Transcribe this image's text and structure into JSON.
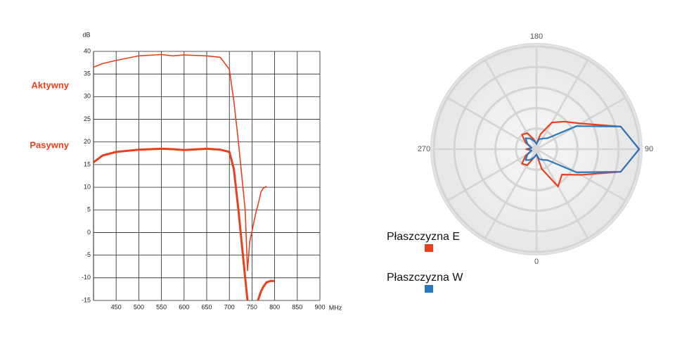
{
  "chart_data": [
    {
      "type": "line",
      "y_label": "dB",
      "x_label": "MHz",
      "x": [
        400,
        420,
        450,
        500,
        550,
        575,
        600,
        650,
        680,
        700,
        710,
        720,
        730,
        735,
        740,
        745,
        760,
        763,
        770,
        775,
        782,
        791,
        800
      ],
      "series": [
        {
          "name": "Aktywny",
          "color": "#e8401c",
          "values": [
            36.5,
            37.3,
            38,
            39,
            39.3,
            39,
            39.2,
            39,
            38.7,
            36,
            29,
            20,
            10,
            5,
            -8.5,
            -2,
            5,
            6,
            9,
            9.8,
            10.2,
            null,
            null
          ]
        },
        {
          "name": "Pasywny",
          "color": "#e8401c",
          "values": [
            15.5,
            17,
            17.8,
            18.3,
            18.5,
            18.4,
            18.2,
            18.5,
            18.3,
            17.8,
            14,
            5,
            -5,
            -10,
            -15,
            null,
            null,
            -15,
            -13,
            -12,
            -11,
            -10.7,
            -10.7
          ]
        }
      ],
      "xlim": [
        400,
        900
      ],
      "xticks": [
        450,
        500,
        550,
        600,
        650,
        700,
        750,
        800,
        850,
        900
      ],
      "ylim": [
        -15,
        40
      ],
      "yticks": [
        -15,
        -10,
        -5,
        0,
        5,
        10,
        15,
        20,
        25,
        30,
        35,
        40
      ],
      "grid": true
    },
    {
      "type": "polar",
      "theta": [
        0,
        15,
        30,
        45,
        60,
        75,
        90,
        105,
        120,
        135,
        150,
        165,
        180,
        195,
        210,
        225,
        240,
        255,
        270,
        285,
        300,
        315,
        330,
        345
      ],
      "series": [
        {
          "name": "Płaszczyzna E",
          "color": "#e8401c",
          "values": [
            0.05,
            0.2,
            0.42,
            0.35,
            0.5,
            0.85,
            1.0,
            0.85,
            0.5,
            0.38,
            0.3,
            0.15,
            0.05,
            0.1,
            0.18,
            0.2,
            0.12,
            0.05,
            0.1,
            0.05,
            0.12,
            0.2,
            0.18,
            0.08
          ]
        },
        {
          "name": "Płaszczyzna W",
          "color": "#2a78c0",
          "values": [
            0.05,
            0.1,
            0.12,
            0.15,
            0.45,
            0.85,
            1.0,
            0.85,
            0.45,
            0.15,
            0.12,
            0.1,
            0.05,
            0.08,
            0.12,
            0.15,
            0.1,
            0.05,
            0.08,
            0.05,
            0.1,
            0.15,
            0.12,
            0.08
          ]
        }
      ],
      "rlim": [
        0,
        1
      ],
      "rticks": [
        0.2,
        0.4,
        0.6,
        0.8,
        1
      ],
      "thetaticks": [
        0,
        90,
        180,
        270
      ]
    }
  ]
}
